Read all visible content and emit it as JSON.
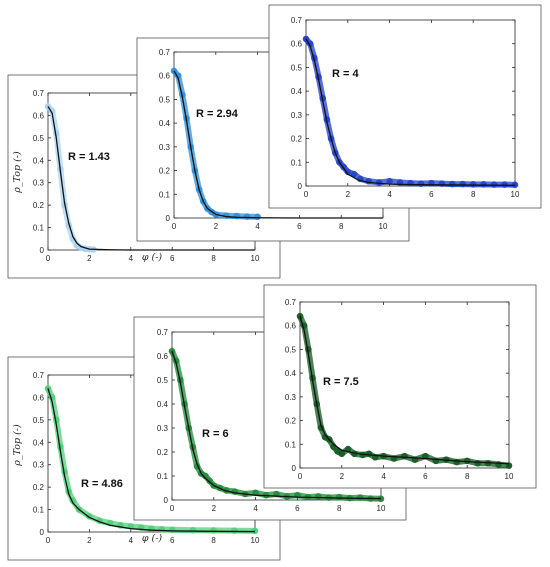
{
  "chart_data": [
    {
      "type": "scatter",
      "label": "R = 1.43",
      "ylabel": "ρ_Top (-)",
      "xlabel": "φ (-)",
      "xlim": [
        0,
        10
      ],
      "ylim": [
        0,
        0.7
      ],
      "xticks": [
        0,
        2,
        4,
        6,
        8,
        10
      ],
      "yticks": [
        0,
        0.1,
        0.2,
        0.3,
        0.4,
        0.5,
        0.6,
        0.7
      ],
      "marker_color": "#a8d4f0",
      "series": [
        {
          "role": "measured",
          "x": [
            0,
            0.2,
            0.4,
            0.6,
            0.8,
            1.0,
            1.2,
            1.4,
            1.6,
            1.8,
            2.0,
            2.2
          ],
          "y": [
            0.64,
            0.62,
            0.52,
            0.36,
            0.2,
            0.11,
            0.05,
            0.02,
            0.01,
            0.005,
            0.003,
            0.002
          ]
        },
        {
          "role": "fit",
          "x": [
            0,
            0.2,
            0.4,
            0.6,
            0.8,
            1.0,
            1.2,
            1.4,
            1.6,
            2.0,
            3,
            4,
            6,
            8,
            10
          ],
          "y": [
            0.64,
            0.61,
            0.5,
            0.35,
            0.21,
            0.12,
            0.06,
            0.03,
            0.015,
            0.004,
            0.001,
            0,
            0,
            0,
            0
          ]
        }
      ]
    },
    {
      "type": "scatter",
      "label": "R = 2.94",
      "xlim": [
        0,
        10
      ],
      "ylim": [
        0,
        0.7
      ],
      "xticks": [
        0,
        2,
        4,
        6,
        8,
        10
      ],
      "yticks": [
        0,
        0.1,
        0.2,
        0.3,
        0.4,
        0.5,
        0.6,
        0.7
      ],
      "marker_color": "#2e8fd8",
      "series": [
        {
          "role": "measured",
          "x": [
            0,
            0.2,
            0.4,
            0.6,
            0.8,
            1.0,
            1.2,
            1.4,
            1.6,
            1.8,
            2.0,
            2.5,
            3.0,
            3.5,
            4.0
          ],
          "y": [
            0.62,
            0.6,
            0.52,
            0.42,
            0.3,
            0.2,
            0.12,
            0.07,
            0.04,
            0.025,
            0.015,
            0.01,
            0.008,
            0.006,
            0.005
          ]
        },
        {
          "role": "fit",
          "x": [
            0,
            0.2,
            0.4,
            0.6,
            0.8,
            1.0,
            1.2,
            1.4,
            1.6,
            2.0,
            2.5,
            3,
            4,
            6,
            8,
            10
          ],
          "y": [
            0.62,
            0.59,
            0.51,
            0.41,
            0.3,
            0.2,
            0.12,
            0.07,
            0.04,
            0.015,
            0.006,
            0.003,
            0.001,
            0,
            0,
            0
          ]
        }
      ]
    },
    {
      "type": "scatter",
      "label": "R = 4",
      "xlim": [
        0,
        10
      ],
      "ylim": [
        0,
        0.7
      ],
      "xticks": [
        0,
        2,
        4,
        6,
        8,
        10
      ],
      "yticks": [
        0,
        0.1,
        0.2,
        0.3,
        0.4,
        0.5,
        0.6,
        0.7
      ],
      "marker_color": "#1f3fcf",
      "series": [
        {
          "role": "measured",
          "x": [
            0,
            0.2,
            0.4,
            0.6,
            0.8,
            1.0,
            1.2,
            1.4,
            1.6,
            1.8,
            2.0,
            2.3,
            2.6,
            3.0,
            3.5,
            4.0,
            4.5,
            5,
            5.5,
            6,
            6.5,
            7,
            7.5,
            8,
            8.5,
            9,
            9.5,
            10
          ],
          "y": [
            0.62,
            0.6,
            0.54,
            0.46,
            0.37,
            0.28,
            0.2,
            0.14,
            0.1,
            0.08,
            0.06,
            0.05,
            0.03,
            0.02,
            0.015,
            0.02,
            0.015,
            0.012,
            0.01,
            0.012,
            0.01,
            0.008,
            0.008,
            0.007,
            0.007,
            0.006,
            0.006,
            0.005
          ]
        },
        {
          "role": "fit",
          "x": [
            0,
            0.2,
            0.4,
            0.6,
            0.8,
            1.0,
            1.2,
            1.4,
            1.6,
            2.0,
            2.5,
            3,
            4,
            5,
            6,
            8,
            10
          ],
          "y": [
            0.62,
            0.59,
            0.53,
            0.45,
            0.36,
            0.27,
            0.2,
            0.14,
            0.1,
            0.05,
            0.025,
            0.015,
            0.008,
            0.006,
            0.005,
            0.004,
            0.003
          ]
        }
      ]
    },
    {
      "type": "scatter",
      "label": "R = 4.86",
      "ylabel": "ρ_Top (-)",
      "xlabel": "φ (-)",
      "xlim": [
        0,
        10
      ],
      "ylim": [
        0,
        0.7
      ],
      "xticks": [
        0,
        2,
        4,
        6,
        8,
        10
      ],
      "yticks": [
        0,
        0.1,
        0.2,
        0.3,
        0.4,
        0.5,
        0.6,
        0.7
      ],
      "marker_color": "#4fd07a",
      "series": [
        {
          "role": "measured",
          "x": [
            0,
            0.2,
            0.4,
            0.6,
            0.8,
            1.0,
            1.2,
            1.5,
            2.0,
            2.5,
            3.0,
            3.5,
            4.0,
            4.5,
            5.0,
            5.5,
            6,
            7,
            8,
            9,
            10
          ],
          "y": [
            0.64,
            0.6,
            0.5,
            0.38,
            0.27,
            0.18,
            0.14,
            0.1,
            0.07,
            0.05,
            0.04,
            0.03,
            0.025,
            0.02,
            0.015,
            0.012,
            0.01,
            0.008,
            0.007,
            0.006,
            0.005
          ]
        },
        {
          "role": "fit",
          "x": [
            0,
            0.2,
            0.4,
            0.6,
            0.8,
            1.0,
            1.2,
            1.5,
            2.0,
            2.5,
            3,
            4,
            5,
            6,
            8,
            10
          ],
          "y": [
            0.64,
            0.58,
            0.48,
            0.36,
            0.25,
            0.17,
            0.13,
            0.1,
            0.065,
            0.045,
            0.03,
            0.015,
            0.008,
            0.005,
            0.003,
            0.002
          ]
        }
      ]
    },
    {
      "type": "scatter",
      "label": "R = 6",
      "xlim": [
        0,
        10
      ],
      "ylim": [
        0,
        0.7
      ],
      "xticks": [
        0,
        2,
        4,
        6,
        8,
        10
      ],
      "yticks": [
        0,
        0.1,
        0.2,
        0.3,
        0.4,
        0.5,
        0.6,
        0.7
      ],
      "marker_color": "#1e8a38",
      "series": [
        {
          "role": "measured",
          "x": [
            0,
            0.2,
            0.4,
            0.6,
            0.8,
            1.0,
            1.2,
            1.4,
            1.6,
            1.8,
            2.0,
            2.3,
            2.6,
            3.0,
            3.5,
            4.0,
            4.5,
            5,
            5.5,
            6,
            6.5,
            7,
            7.5,
            8,
            8.5,
            9,
            9.5,
            10
          ],
          "y": [
            0.62,
            0.58,
            0.5,
            0.4,
            0.3,
            0.22,
            0.14,
            0.11,
            0.1,
            0.08,
            0.06,
            0.05,
            0.04,
            0.035,
            0.025,
            0.03,
            0.02,
            0.025,
            0.015,
            0.02,
            0.012,
            0.015,
            0.01,
            0.012,
            0.008,
            0.01,
            0.006,
            0.005
          ]
        },
        {
          "role": "fit",
          "x": [
            0,
            0.2,
            0.4,
            0.6,
            0.8,
            1.0,
            1.2,
            1.4,
            1.6,
            2.0,
            2.5,
            3,
            4,
            5,
            6,
            8,
            10
          ],
          "y": [
            0.62,
            0.57,
            0.49,
            0.39,
            0.3,
            0.21,
            0.15,
            0.11,
            0.09,
            0.06,
            0.04,
            0.03,
            0.02,
            0.016,
            0.012,
            0.008,
            0.006
          ]
        }
      ]
    },
    {
      "type": "scatter",
      "label": "R = 7.5",
      "xlim": [
        0,
        10
      ],
      "ylim": [
        0,
        0.7
      ],
      "xticks": [
        0,
        2,
        4,
        6,
        8,
        10
      ],
      "yticks": [
        0,
        0.1,
        0.2,
        0.3,
        0.4,
        0.5,
        0.6,
        0.7
      ],
      "marker_color": "#0f5a1f",
      "series": [
        {
          "role": "measured",
          "x": [
            0,
            0.2,
            0.4,
            0.6,
            0.8,
            1.0,
            1.2,
            1.4,
            1.6,
            1.8,
            2.0,
            2.3,
            2.6,
            3.0,
            3.3,
            3.6,
            4.0,
            4.5,
            5,
            5.5,
            6,
            6.5,
            7,
            7.5,
            8,
            8.5,
            9,
            9.5,
            10
          ],
          "y": [
            0.64,
            0.6,
            0.5,
            0.38,
            0.27,
            0.17,
            0.13,
            0.12,
            0.09,
            0.07,
            0.06,
            0.08,
            0.06,
            0.055,
            0.06,
            0.045,
            0.05,
            0.04,
            0.05,
            0.035,
            0.05,
            0.03,
            0.035,
            0.025,
            0.03,
            0.02,
            0.02,
            0.015,
            0.01
          ]
        },
        {
          "role": "fit",
          "x": [
            0,
            0.2,
            0.4,
            0.6,
            0.8,
            1.0,
            1.2,
            1.4,
            1.6,
            2.0,
            2.5,
            3,
            4,
            5,
            6,
            7,
            8,
            10
          ],
          "y": [
            0.64,
            0.58,
            0.48,
            0.37,
            0.27,
            0.18,
            0.14,
            0.12,
            0.1,
            0.075,
            0.065,
            0.058,
            0.05,
            0.045,
            0.04,
            0.033,
            0.027,
            0.018
          ]
        }
      ]
    }
  ]
}
